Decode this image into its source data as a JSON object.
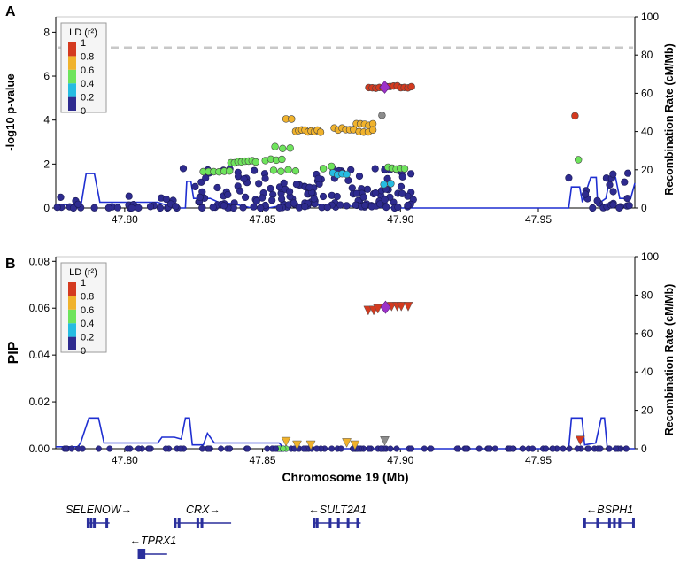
{
  "panels": {
    "a": {
      "letter": "A"
    },
    "b": {
      "letter": "B"
    }
  },
  "colors": {
    "ld_scale": [
      "#2e2b8f",
      "#26bce1",
      "#6ee45c",
      "#f0b22c",
      "#d43a1f"
    ],
    "ld_colors": {
      "0": "#2e2b8f",
      "0.2": "#26bce1",
      "0.4": "#6ee45c",
      "0.6": "#f0b22c",
      "0.8": "#d43a1f",
      "lead": "#9c32c8",
      "na": "#8c8c8c"
    },
    "recomb_line": "#1f2fd1",
    "threshold": "#c8c8c8"
  },
  "legend": {
    "title": "LD (r²)",
    "labels": [
      "1",
      "0.8",
      "0.6",
      "0.4",
      "0.2",
      "0"
    ]
  },
  "x_axis": {
    "label": "Chromosome 19 (Mb)",
    "ticks": [
      "47.80",
      "47.85",
      "47.90",
      "47.95"
    ]
  },
  "chart_data": [
    {
      "type": "scatter",
      "panel": "A",
      "ylabel": "-log10 p-value",
      "y2label": "Recombination Rate (cM/Mb)",
      "xlim": [
        47.775,
        47.985
      ],
      "ylim": [
        0,
        8.7
      ],
      "y2lim": [
        0,
        100
      ],
      "yticks": [
        "0",
        "2",
        "4",
        "6",
        "8"
      ],
      "y2ticks": [
        "0",
        "20",
        "40",
        "60",
        "80",
        "100"
      ],
      "threshold": 7.3,
      "lead_snp": {
        "x": 47.8943,
        "y": 5.5
      },
      "clusters": [
        {
          "ld": 0.8,
          "x0": 47.8885,
          "x1": 47.904,
          "y": 5.5,
          "n": 13
        },
        {
          "ld": 0.6,
          "x0": 47.862,
          "x1": 47.871,
          "y": 3.5,
          "n": 9
        },
        {
          "ld": 0.6,
          "x0": 47.876,
          "x1": 47.883,
          "y": 3.6,
          "n": 6
        },
        {
          "ld": 0.6,
          "x0": 47.884,
          "x1": 47.89,
          "y": 3.8,
          "n": 5
        },
        {
          "ld": 0.6,
          "x0": 47.885,
          "x1": 47.89,
          "y": 3.5,
          "n": 4
        },
        {
          "ld": 0.6,
          "x0": 47.8585,
          "x1": 47.8605,
          "y": 4.0,
          "n": 2
        },
        {
          "ld": 0.4,
          "x0": 47.8385,
          "x1": 47.8475,
          "y": 2.1,
          "n": 8
        },
        {
          "ld": 0.4,
          "x0": 47.851,
          "x1": 47.857,
          "y": 2.2,
          "n": 4
        },
        {
          "ld": 0.4,
          "x0": 47.8545,
          "x1": 47.86,
          "y": 2.75,
          "n": 3
        },
        {
          "ld": 0.4,
          "x0": 47.8285,
          "x1": 47.838,
          "y": 1.7,
          "n": 6
        },
        {
          "ld": 0.4,
          "x0": 47.854,
          "x1": 47.862,
          "y": 1.7,
          "n": 4
        },
        {
          "ld": 0.4,
          "x0": 47.8955,
          "x1": 47.9015,
          "y": 1.8,
          "n": 5
        },
        {
          "ld": 0.4,
          "x0": 47.872,
          "x1": 47.875,
          "y": 1.85,
          "n": 2
        },
        {
          "ld": 0.2,
          "x0": 47.8755,
          "x1": 47.8805,
          "y": 1.55,
          "n": 4
        },
        {
          "ld": 0.2,
          "x0": 47.894,
          "x1": 47.8965,
          "y": 1.1,
          "n": 2
        },
        {
          "ld": 0.4,
          "x0": 47.9645,
          "x1": 47.966,
          "y": 2.2,
          "n": 1
        },
        {
          "ld": 0.8,
          "x0": 47.9633,
          "x1": 47.9633,
          "y": 4.25,
          "n": 1
        },
        {
          "ld": "na",
          "x0": 47.8933,
          "x1": 47.8933,
          "y": 4.2,
          "n": 1
        }
      ],
      "background": {
        "ld": 0,
        "y_range": [
          0,
          1.8
        ],
        "n": 220
      },
      "recombination": [
        [
          47.775,
          1
        ],
        [
          47.778,
          2
        ],
        [
          47.78,
          1
        ],
        [
          47.784,
          0
        ],
        [
          47.786,
          18
        ],
        [
          47.789,
          18
        ],
        [
          47.791,
          3
        ],
        [
          47.812,
          3
        ],
        [
          47.818,
          0
        ],
        [
          47.822,
          0
        ],
        [
          47.8225,
          14
        ],
        [
          47.824,
          14
        ],
        [
          47.825,
          5
        ],
        [
          47.831,
          5
        ],
        [
          47.834,
          3
        ],
        [
          47.84,
          2
        ],
        [
          47.846,
          0
        ],
        [
          47.852,
          0
        ],
        [
          47.86,
          2
        ],
        [
          47.88,
          1
        ],
        [
          47.9,
          0
        ],
        [
          47.961,
          0
        ],
        [
          47.962,
          11
        ],
        [
          47.965,
          11
        ],
        [
          47.966,
          3
        ],
        [
          47.969,
          16
        ],
        [
          47.971,
          16
        ],
        [
          47.9715,
          2
        ],
        [
          47.9745,
          5
        ],
        [
          47.976,
          16
        ],
        [
          47.978,
          16
        ],
        [
          47.9795,
          5
        ],
        [
          47.9835,
          5
        ],
        [
          47.985,
          13
        ]
      ]
    },
    {
      "type": "scatter",
      "panel": "B",
      "ylabel": "PIP",
      "y2label": "Recombination Rate (cM/Mb)",
      "xlim": [
        47.775,
        47.985
      ],
      "ylim": [
        0,
        0.082
      ],
      "y2lim": [
        0,
        100
      ],
      "yticks": [
        "0.00",
        "0.02",
        "0.04",
        "0.06",
        "0.08"
      ],
      "y2ticks": [
        "0",
        "20",
        "40",
        "60",
        "80",
        "100"
      ],
      "lead_snp": {
        "x": 47.8946,
        "y": 0.0604
      },
      "triangles": [
        {
          "ld": 0.8,
          "x": 47.8883,
          "y": 0.059
        },
        {
          "ld": 0.8,
          "x": 47.8903,
          "y": 0.059
        },
        {
          "ld": 0.8,
          "x": 47.8918,
          "y": 0.0597
        },
        {
          "ld": 0.8,
          "x": 47.8968,
          "y": 0.0607
        },
        {
          "ld": 0.8,
          "x": 47.8988,
          "y": 0.0607
        },
        {
          "ld": 0.8,
          "x": 47.9003,
          "y": 0.0607
        },
        {
          "ld": 0.8,
          "x": 47.9028,
          "y": 0.0607
        },
        {
          "ld": 0.6,
          "x": 47.8585,
          "y": 0.003
        },
        {
          "ld": 0.6,
          "x": 47.8625,
          "y": 0.0015
        },
        {
          "ld": 0.6,
          "x": 47.8675,
          "y": 0.0015
        },
        {
          "ld": 0.6,
          "x": 47.8805,
          "y": 0.0025
        },
        {
          "ld": 0.6,
          "x": 47.8835,
          "y": 0.0015
        },
        {
          "ld": "na",
          "x": 47.8943,
          "y": 0.0033
        },
        {
          "ld": 0.8,
          "x": 47.9652,
          "y": 0.0035
        }
      ],
      "recombination": [
        [
          47.775,
          1
        ],
        [
          47.783,
          1
        ],
        [
          47.784,
          3
        ],
        [
          47.787,
          16
        ],
        [
          47.7905,
          16
        ],
        [
          47.7925,
          3
        ],
        [
          47.812,
          3
        ],
        [
          47.8135,
          6
        ],
        [
          47.818,
          6
        ],
        [
          47.8205,
          5
        ],
        [
          47.822,
          16
        ],
        [
          47.8235,
          16
        ],
        [
          47.8245,
          2
        ],
        [
          47.8285,
          2
        ],
        [
          47.83,
          8
        ],
        [
          47.8325,
          3
        ],
        [
          47.856,
          3
        ],
        [
          47.858,
          0
        ],
        [
          47.9,
          0
        ],
        [
          47.961,
          0
        ],
        [
          47.962,
          16
        ],
        [
          47.9658,
          16
        ],
        [
          47.9668,
          2
        ],
        [
          47.9708,
          3
        ],
        [
          47.9728,
          16
        ],
        [
          47.974,
          16
        ],
        [
          47.975,
          0
        ],
        [
          47.985,
          0
        ]
      ]
    }
  ],
  "genes": [
    {
      "name": "SELENOW",
      "arrow": "→",
      "strand": "+",
      "x0": 47.7867,
      "x1": 47.7945,
      "row": 0,
      "exons": [
        47.7867,
        47.7878,
        47.789,
        47.7935
      ]
    },
    {
      "name": "CRX",
      "arrow": "→",
      "strand": "+",
      "x0": 47.8183,
      "x1": 47.8386,
      "row": 0,
      "exons": [
        47.8183,
        47.8197,
        47.8265,
        47.828
      ]
    },
    {
      "name": "SULT2A1",
      "arrow": "←",
      "strand": "-",
      "x0": 47.8687,
      "x1": 47.8856,
      "row": 0,
      "exons": [
        47.8687,
        47.8698,
        47.8745,
        47.8775,
        47.881,
        47.8845
      ]
    },
    {
      "name": "BSPH1",
      "arrow": "←",
      "strand": "-",
      "x0": 47.9668,
      "x1": 47.9849,
      "row": 0,
      "exons": [
        47.9668,
        47.9715,
        47.9758,
        47.9776,
        47.9795,
        47.9845
      ]
    },
    {
      "name": "TPRX1",
      "arrow": "←",
      "strand": "-",
      "x0": 47.8052,
      "x1": 47.8154,
      "row": 1,
      "exons": [
        47.8052,
        47.8058,
        47.8064,
        47.807
      ]
    }
  ]
}
